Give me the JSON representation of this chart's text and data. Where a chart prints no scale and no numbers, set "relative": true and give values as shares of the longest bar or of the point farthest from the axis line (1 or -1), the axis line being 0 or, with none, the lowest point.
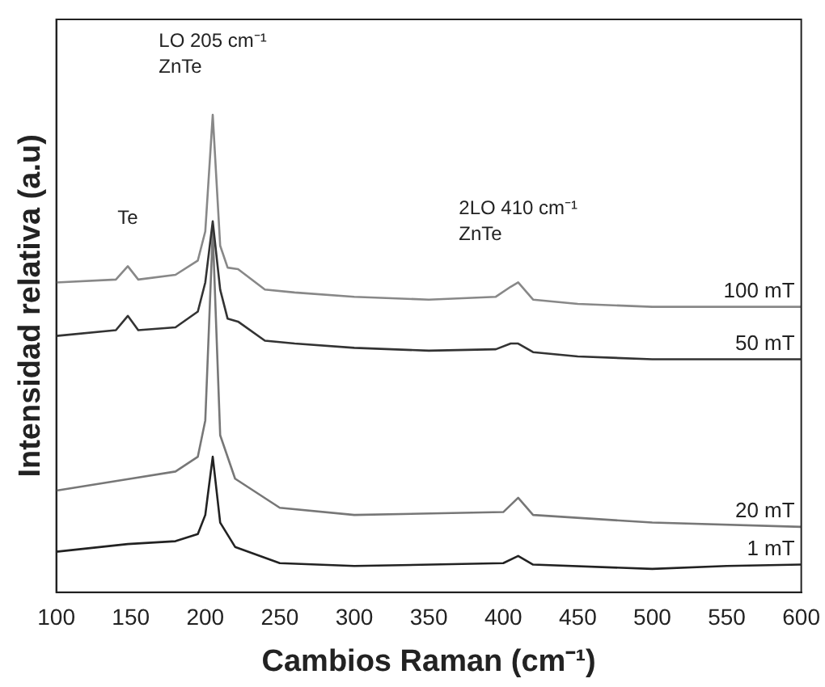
{
  "chart_data": {
    "type": "line",
    "relative": true,
    "xlabel": "Cambios Raman (cm⁻¹)",
    "ylabel": "Intensidad relativa (a.u)",
    "xlim": [
      100,
      600
    ],
    "xticks": [
      100,
      150,
      200,
      250,
      300,
      350,
      400,
      450,
      500,
      550,
      600
    ],
    "grid": false,
    "legend": false,
    "marker": "none",
    "line_style": "solid",
    "series": [
      {
        "name": "100 mT",
        "color": "#888888",
        "x": [
          100,
          140,
          148,
          155,
          180,
          195,
          200,
          205,
          210,
          215,
          222,
          240,
          260,
          300,
          350,
          395,
          405,
          410,
          420,
          450,
          500,
          600
        ],
        "values": [
          0.649,
          0.655,
          0.683,
          0.655,
          0.665,
          0.695,
          0.756,
          1,
          0.726,
          0.68,
          0.677,
          0.634,
          0.628,
          0.619,
          0.613,
          0.619,
          0.64,
          0.649,
          0.613,
          0.604,
          0.598,
          0.598
        ]
      },
      {
        "name": "50 mT",
        "color": "#333333",
        "x": [
          100,
          140,
          148,
          155,
          180,
          195,
          200,
          205,
          210,
          215,
          222,
          240,
          260,
          300,
          350,
          395,
          405,
          410,
          420,
          450,
          500,
          600
        ],
        "values": [
          0.537,
          0.549,
          0.579,
          0.549,
          0.555,
          0.588,
          0.649,
          0.777,
          0.634,
          0.573,
          0.567,
          0.527,
          0.521,
          0.512,
          0.506,
          0.509,
          0.521,
          0.521,
          0.503,
          0.494,
          0.488,
          0.488
        ]
      },
      {
        "name": "20 mT",
        "color": "#777777",
        "x": [
          100,
          150,
          180,
          195,
          200,
          205,
          210,
          220,
          250,
          300,
          400,
          410,
          420,
          500,
          600
        ],
        "values": [
          0.213,
          0.238,
          0.253,
          0.284,
          0.36,
          0.756,
          0.329,
          0.238,
          0.177,
          0.162,
          0.168,
          0.198,
          0.162,
          0.146,
          0.137
        ]
      },
      {
        "name": "1 mT",
        "color": "#222222",
        "x": [
          100,
          148,
          180,
          195,
          200,
          205,
          210,
          220,
          250,
          300,
          400,
          410,
          420,
          500,
          550,
          600
        ],
        "values": [
          0.085,
          0.101,
          0.107,
          0.122,
          0.162,
          0.284,
          0.146,
          0.095,
          0.061,
          0.055,
          0.061,
          0.076,
          0.058,
          0.049,
          0.055,
          0.058
        ]
      }
    ],
    "annotations": [
      {
        "text": "Te",
        "x": 148,
        "y": 0.683
      },
      {
        "text": "LO 205 cm⁻¹\nZnTe",
        "x": 205,
        "y": 1
      },
      {
        "text": "2LO 410 cm⁻¹\nZnTe",
        "x": 410,
        "y": 0.649
      }
    ]
  }
}
